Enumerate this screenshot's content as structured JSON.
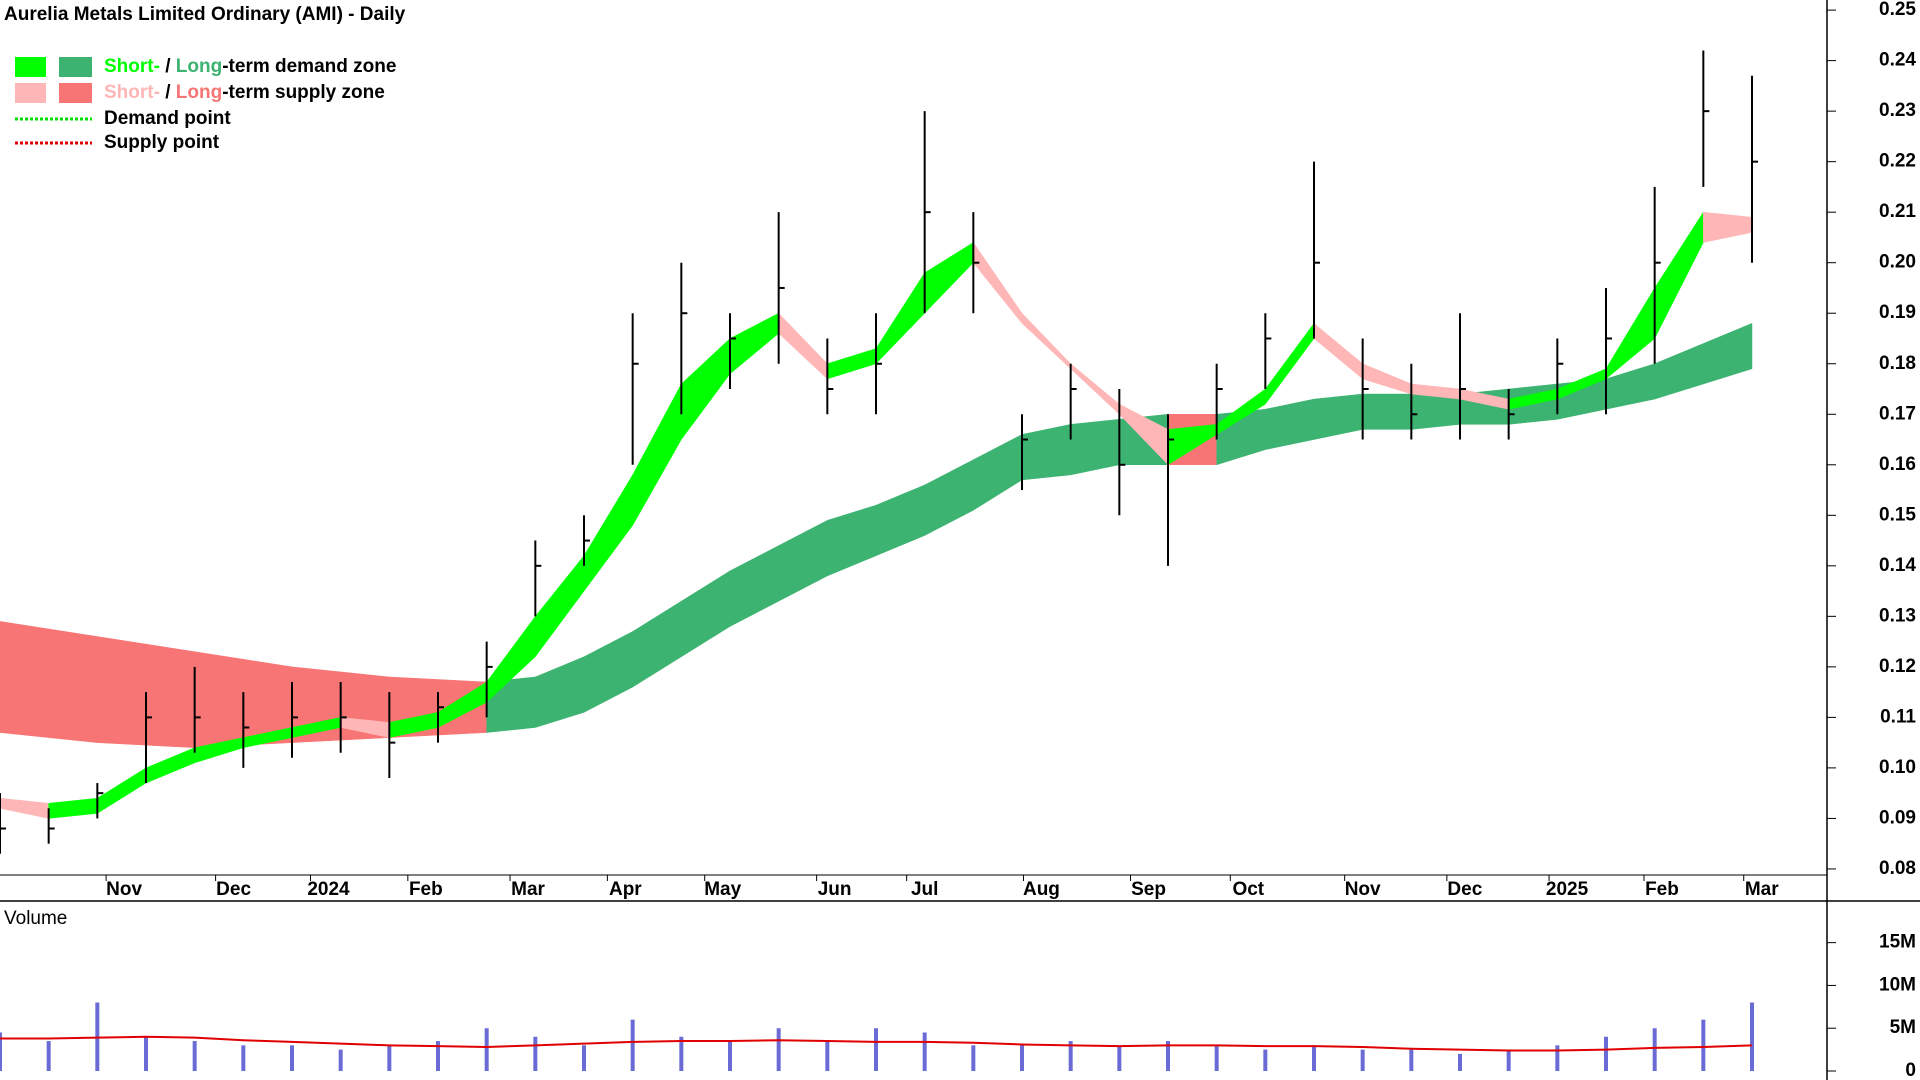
{
  "chart_data": {
    "type": "candlestick",
    "title": "Aurelia Metals Limited Ordinary (AMI) - Daily",
    "x": [
      0,
      2,
      4,
      6,
      8,
      10,
      12,
      14,
      16,
      18,
      20,
      22,
      24,
      26,
      28,
      30,
      32,
      34,
      36,
      38,
      40,
      42,
      44,
      46,
      48,
      50,
      52,
      54,
      56,
      58,
      60,
      62,
      64,
      66,
      68,
      70,
      72
    ],
    "xlim": [
      0,
      75
    ],
    "xticks": [
      {
        "value": 5.1,
        "label": "Nov"
      },
      {
        "value": 9.6,
        "label": "Dec"
      },
      {
        "value": 13.5,
        "label": "2024"
      },
      {
        "value": 17.5,
        "label": "Feb"
      },
      {
        "value": 21.7,
        "label": "Mar"
      },
      {
        "value": 25.7,
        "label": "Apr"
      },
      {
        "value": 29.7,
        "label": "May"
      },
      {
        "value": 34.3,
        "label": "Jun"
      },
      {
        "value": 38.0,
        "label": "Jul"
      },
      {
        "value": 42.8,
        "label": "Aug"
      },
      {
        "value": 47.2,
        "label": "Sep"
      },
      {
        "value": 51.3,
        "label": "Oct"
      },
      {
        "value": 56.0,
        "label": "Nov"
      },
      {
        "value": 60.2,
        "label": "Dec"
      },
      {
        "value": 64.4,
        "label": "2025"
      },
      {
        "value": 68.3,
        "label": "Feb"
      },
      {
        "value": 72.4,
        "label": "Mar"
      }
    ],
    "ylim": [
      0.0788,
      0.252
    ],
    "yticks": [
      0.08,
      0.09,
      {
        "value": 0.1,
        "label": "0.10"
      },
      0.11,
      0.12,
      0.13,
      0.14,
      0.15,
      0.16,
      0.17,
      0.18,
      0.19,
      {
        "value": 0.2,
        "label": "0.20"
      },
      0.21,
      0.22,
      0.23,
      0.24,
      0.25
    ],
    "high": [
      0.095,
      0.092,
      0.097,
      0.115,
      0.12,
      0.115,
      0.117,
      0.117,
      0.115,
      0.115,
      0.125,
      0.145,
      0.15,
      0.19,
      0.2,
      0.19,
      0.21,
      0.185,
      0.19,
      0.23,
      0.21,
      0.17,
      0.18,
      0.175,
      0.17,
      0.18,
      0.19,
      0.22,
      0.185,
      0.18,
      0.19,
      0.175,
      0.185,
      0.195,
      0.215,
      0.242,
      0.237
    ],
    "low": [
      0.083,
      0.085,
      0.09,
      0.097,
      0.103,
      0.1,
      0.102,
      0.103,
      0.098,
      0.105,
      0.11,
      0.13,
      0.14,
      0.16,
      0.17,
      0.175,
      0.18,
      0.17,
      0.17,
      0.19,
      0.19,
      0.155,
      0.165,
      0.15,
      0.14,
      0.165,
      0.175,
      0.185,
      0.165,
      0.165,
      0.165,
      0.165,
      0.17,
      0.17,
      0.18,
      0.215,
      0.2
    ],
    "close": [
      0.088,
      0.088,
      0.095,
      0.11,
      0.11,
      0.108,
      0.11,
      0.11,
      0.105,
      0.112,
      0.12,
      0.14,
      0.145,
      0.18,
      0.19,
      0.185,
      0.195,
      0.175,
      0.18,
      0.21,
      0.2,
      0.165,
      0.175,
      0.16,
      0.165,
      0.175,
      0.185,
      0.2,
      0.175,
      0.17,
      0.175,
      0.17,
      0.18,
      0.185,
      0.2,
      0.23,
      0.22
    ],
    "color": "#000000",
    "short_zone": {
      "upper": [
        0.094,
        0.093,
        0.094,
        0.1,
        0.104,
        0.106,
        0.108,
        0.11,
        0.109,
        0.111,
        0.117,
        0.13,
        0.142,
        0.158,
        0.176,
        0.185,
        0.19,
        0.18,
        0.183,
        0.198,
        0.204,
        0.19,
        0.18,
        0.172,
        0.167,
        0.168,
        0.175,
        0.188,
        0.18,
        0.176,
        0.175,
        0.173,
        0.175,
        0.179,
        0.195,
        0.21,
        0.209
      ],
      "lower": [
        0.092,
        0.09,
        0.091,
        0.097,
        0.101,
        0.104,
        0.106,
        0.108,
        0.106,
        0.108,
        0.113,
        0.122,
        0.135,
        0.148,
        0.165,
        0.178,
        0.186,
        0.177,
        0.18,
        0.19,
        0.2,
        0.188,
        0.179,
        0.17,
        0.16,
        0.166,
        0.172,
        0.185,
        0.177,
        0.174,
        0.173,
        0.171,
        0.173,
        0.177,
        0.185,
        0.204,
        0.206
      ],
      "demand_color": "#00ff00",
      "supply_color": "#ffb6b6"
    },
    "long_zone": {
      "upper": [
        0.129,
        0.1275,
        0.126,
        0.1245,
        0.123,
        0.1215,
        0.12,
        0.119,
        0.118,
        0.1175,
        0.117,
        0.118,
        0.122,
        0.127,
        0.133,
        0.139,
        0.144,
        0.149,
        0.152,
        0.156,
        0.161,
        0.166,
        0.168,
        0.169,
        0.17,
        0.17,
        0.171,
        0.173,
        0.174,
        0.174,
        0.174,
        0.175,
        0.176,
        0.177,
        0.18,
        0.184,
        0.188
      ],
      "lower": [
        0.107,
        0.106,
        0.105,
        0.1045,
        0.104,
        0.1045,
        0.105,
        0.1055,
        0.106,
        0.1065,
        0.107,
        0.108,
        0.111,
        0.116,
        0.122,
        0.128,
        0.133,
        0.138,
        0.142,
        0.146,
        0.151,
        0.157,
        0.158,
        0.16,
        0.16,
        0.16,
        0.163,
        0.165,
        0.167,
        0.167,
        0.168,
        0.168,
        0.169,
        0.171,
        0.173,
        0.176,
        0.179
      ],
      "demand_color": "#3cb371",
      "supply_color": "#f77575"
    },
    "legend": {
      "demand_zone": [
        "Short-",
        " / ",
        "Long",
        "-term demand zone"
      ],
      "supply_zone": [
        "Short-",
        " / ",
        "Long",
        "-term supply zone"
      ],
      "demand_point": "Demand point",
      "supply_point": "Supply point",
      "demand_point_color": "#00e000",
      "supply_point_color": "#e00000"
    },
    "volume": {
      "title": "Volume",
      "values": [
        4500000,
        3500000,
        8000000,
        4000000,
        3500000,
        3000000,
        3000000,
        2500000,
        3000000,
        3500000,
        5000000,
        4000000,
        3000000,
        6000000,
        4000000,
        3500000,
        5000000,
        3500000,
        5000000,
        4500000,
        3000000,
        3000000,
        3500000,
        3000000,
        3500000,
        3000000,
        2500000,
        3000000,
        2500000,
        2500000,
        2000000,
        2500000,
        3000000,
        4000000,
        5000000,
        6000000,
        8000000
      ],
      "average": [
        3800000,
        3800000,
        3900000,
        4000000,
        3900000,
        3600000,
        3400000,
        3200000,
        3000000,
        2900000,
        2800000,
        3000000,
        3200000,
        3400000,
        3500000,
        3500000,
        3600000,
        3500000,
        3400000,
        3400000,
        3300000,
        3100000,
        3000000,
        2900000,
        3000000,
        3000000,
        2900000,
        2900000,
        2800000,
        2600000,
        2500000,
        2400000,
        2400000,
        2500000,
        2700000,
        2800000,
        3000000
      ],
      "color": "#6b6bd6",
      "average_color": "#e00000",
      "ylim": [
        0,
        19400000
      ],
      "yticks": [
        0,
        {
          "value": 5000000,
          "label": "5M"
        },
        {
          "value": 10000000,
          "label": "10M"
        },
        {
          "value": 15000000,
          "label": "15M"
        }
      ]
    }
  }
}
